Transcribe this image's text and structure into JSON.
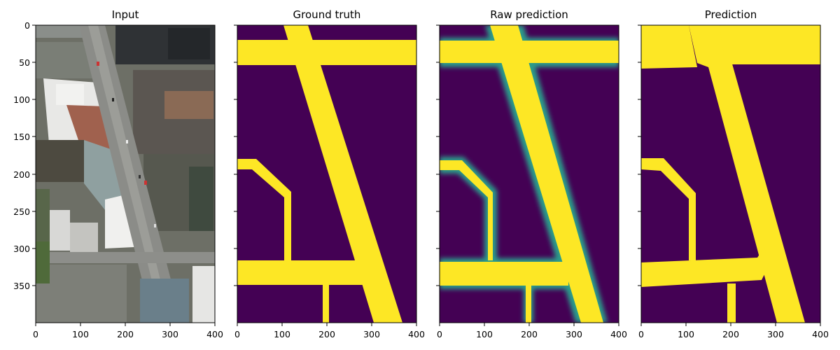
{
  "figure": {
    "panels": [
      {
        "id": "input",
        "title": "Input"
      },
      {
        "id": "ground-truth",
        "title": "Ground truth"
      },
      {
        "id": "raw-prediction",
        "title": "Raw prediction"
      },
      {
        "id": "prediction",
        "title": "Prediction"
      }
    ],
    "x_ticks": [
      "0",
      "100",
      "200",
      "300",
      "400"
    ],
    "y_ticks": [
      "0",
      "50",
      "100",
      "150",
      "200",
      "250",
      "300",
      "350"
    ],
    "image_extent": {
      "width": 400,
      "height": 400
    },
    "colors": {
      "mask_background": "#440154",
      "mask_road": "#fde725",
      "raw_edge": "#2a9c8a"
    }
  }
}
